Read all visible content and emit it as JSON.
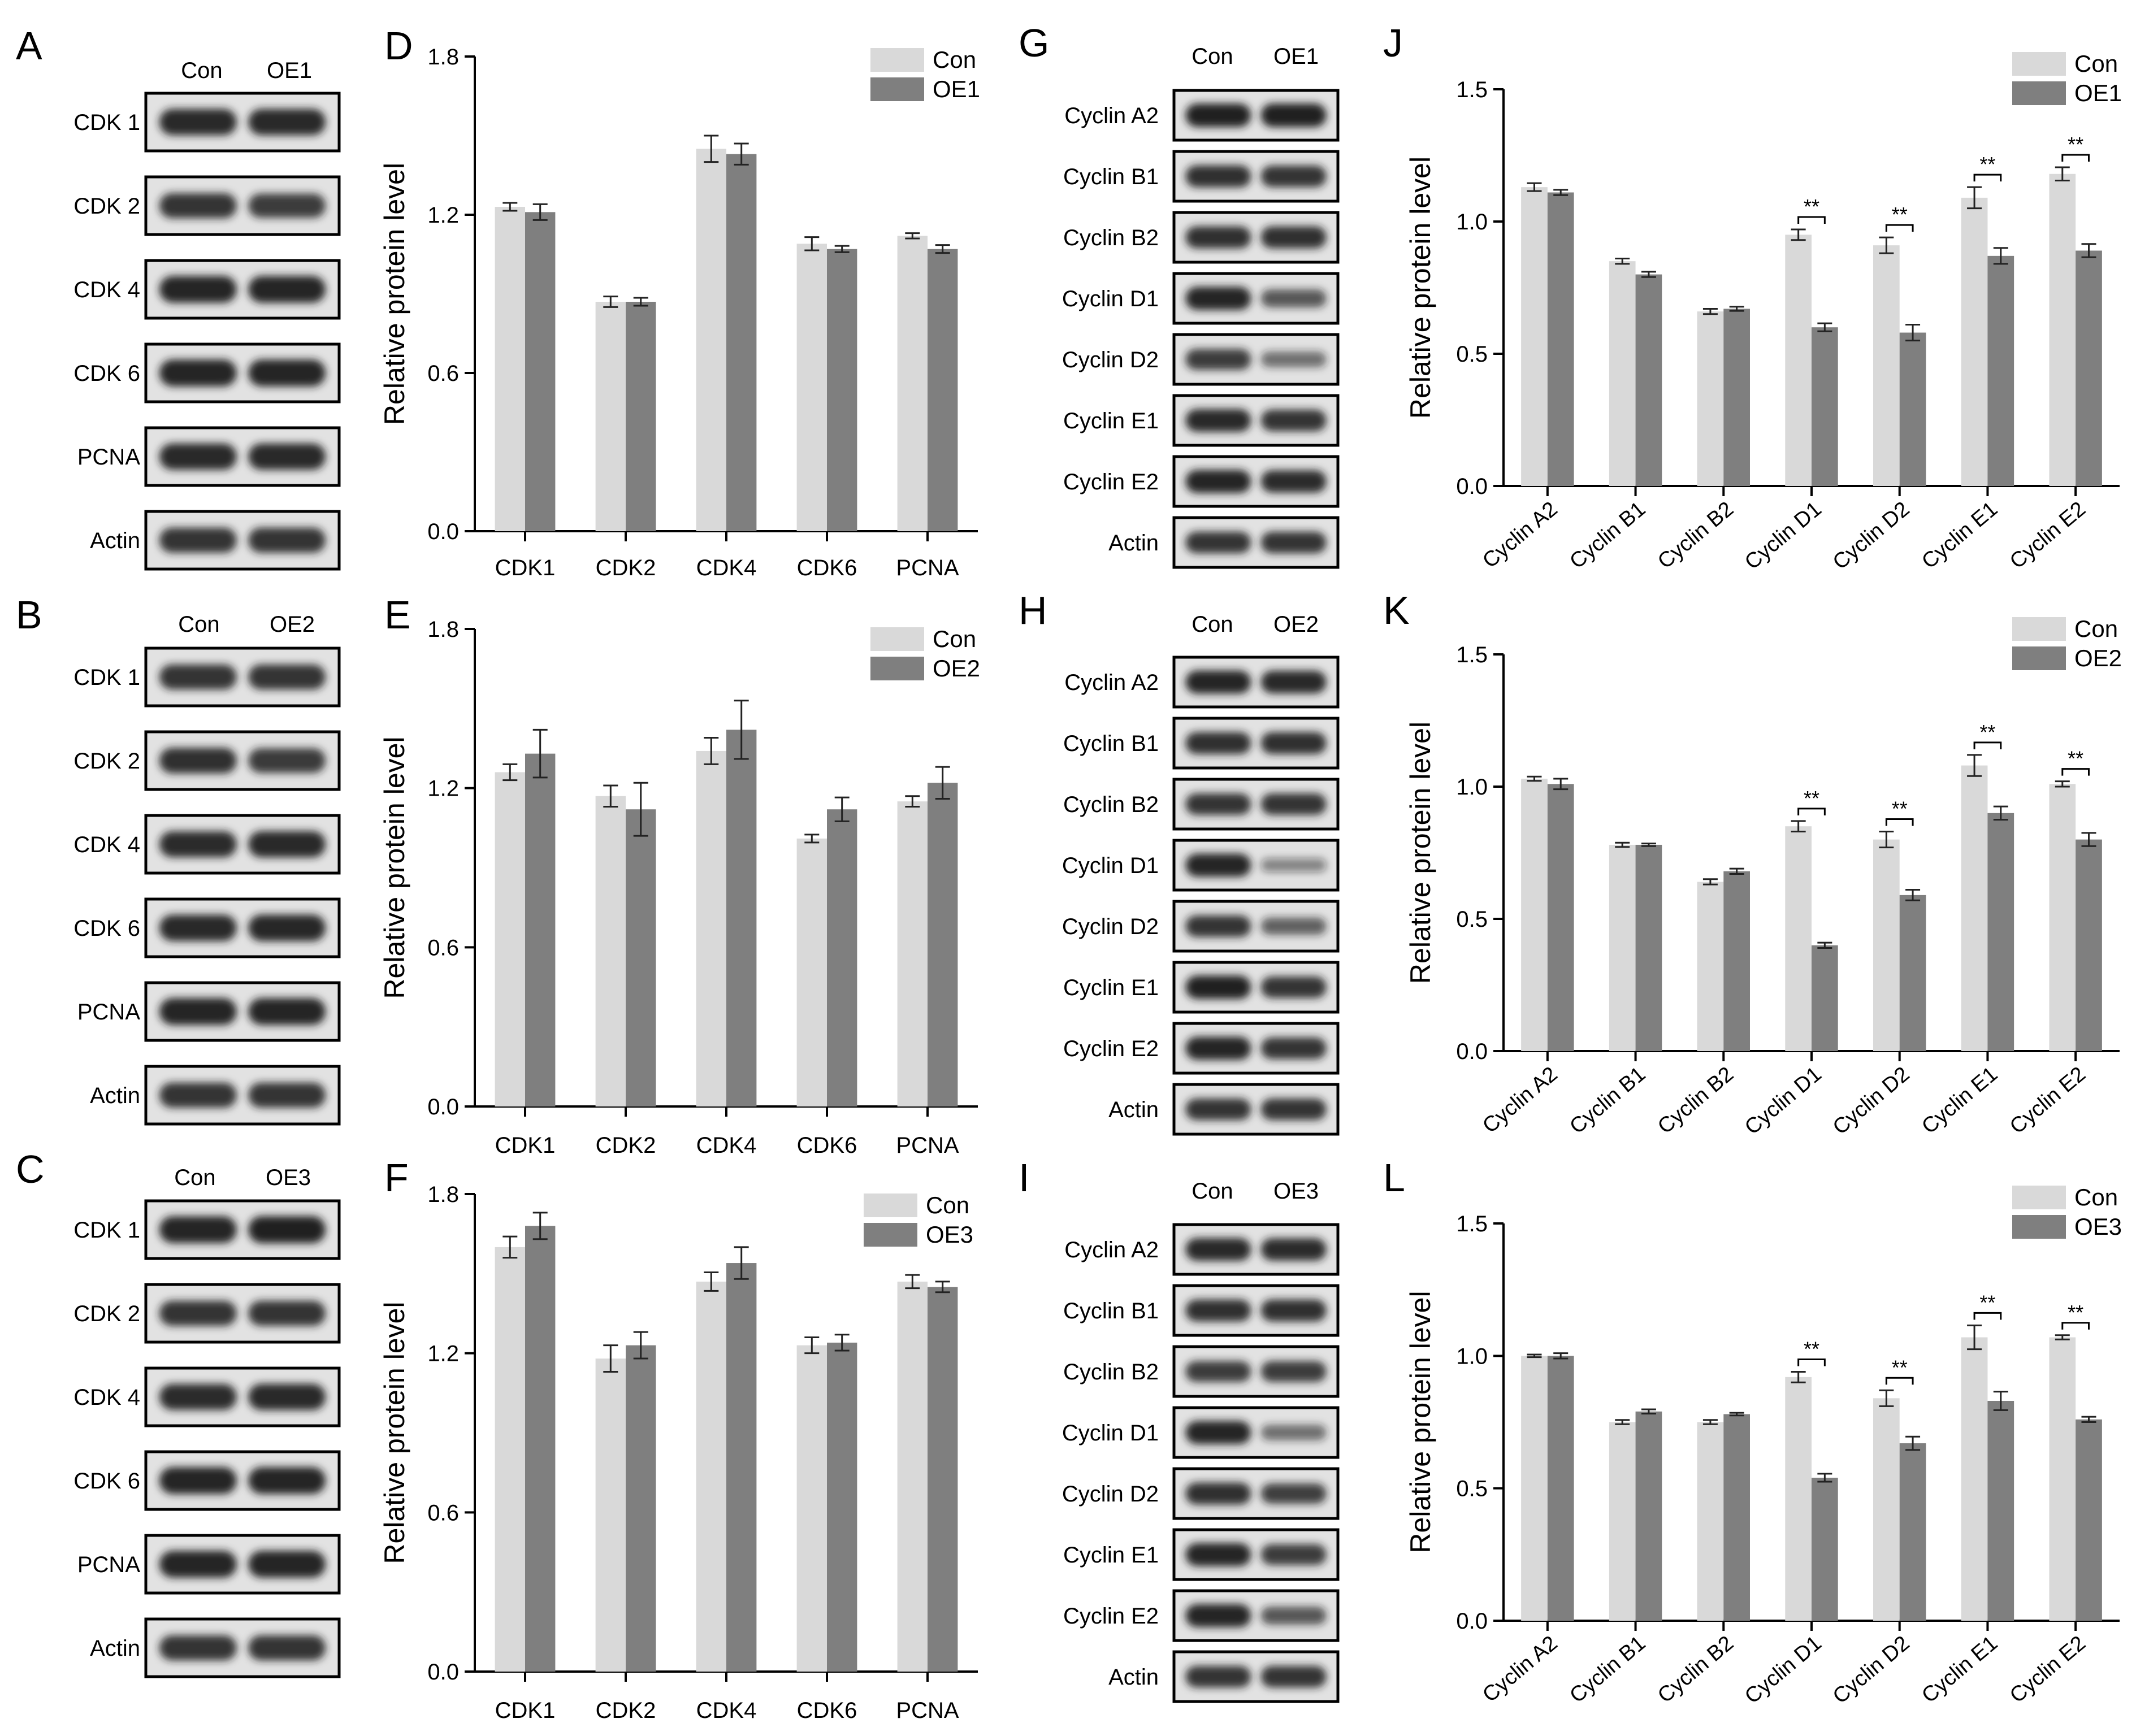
{
  "colors": {
    "con": "#d9d9d9",
    "oe": "#7f7f7f",
    "axis": "#000000",
    "blotBg": "#e2e2e2",
    "band": "#1c1c1c"
  },
  "blots": [
    {
      "letter": "A",
      "lanes": [
        "Con",
        "OE1"
      ],
      "rows": [
        "CDK 1",
        "CDK 2",
        "CDK 4",
        "CDK 6",
        "PCNA",
        "Actin"
      ],
      "intensity": [
        [
          0.92,
          0.92
        ],
        [
          0.85,
          0.8
        ],
        [
          0.95,
          0.95
        ],
        [
          0.95,
          0.95
        ],
        [
          0.92,
          0.92
        ],
        [
          0.85,
          0.85
        ]
      ]
    },
    {
      "letter": "B",
      "lanes": [
        "Con",
        "OE2"
      ],
      "rows": [
        "CDK 1",
        "CDK 2",
        "CDK 4",
        "CDK 6",
        "PCNA",
        "Actin"
      ],
      "intensity": [
        [
          0.85,
          0.85
        ],
        [
          0.88,
          0.82
        ],
        [
          0.9,
          0.92
        ],
        [
          0.92,
          0.94
        ],
        [
          0.95,
          0.95
        ],
        [
          0.85,
          0.85
        ]
      ]
    },
    {
      "letter": "C",
      "lanes": [
        "Con",
        "OE3"
      ],
      "rows": [
        "CDK 1",
        "CDK 2",
        "CDK 4",
        "CDK 6",
        "PCNA",
        "Actin"
      ],
      "intensity": [
        [
          0.95,
          0.97
        ],
        [
          0.85,
          0.85
        ],
        [
          0.9,
          0.92
        ],
        [
          0.95,
          0.95
        ],
        [
          0.95,
          0.95
        ],
        [
          0.85,
          0.85
        ]
      ]
    },
    {
      "letter": "G",
      "lanes": [
        "Con",
        "OE1"
      ],
      "rows": [
        "Cyclin A2",
        "Cyclin B1",
        "Cyclin B2",
        "Cyclin D1",
        "Cyclin D2",
        "Cyclin E1",
        "Cyclin E2",
        "Actin"
      ],
      "intensity": [
        [
          0.97,
          0.98
        ],
        [
          0.88,
          0.85
        ],
        [
          0.88,
          0.88
        ],
        [
          0.95,
          0.6
        ],
        [
          0.8,
          0.45
        ],
        [
          0.92,
          0.85
        ],
        [
          0.95,
          0.9
        ],
        [
          0.85,
          0.85
        ]
      ]
    },
    {
      "letter": "H",
      "lanes": [
        "Con",
        "OE2"
      ],
      "rows": [
        "Cyclin A2",
        "Cyclin B1",
        "Cyclin B2",
        "Cyclin D1",
        "Cyclin D2",
        "Cyclin E1",
        "Cyclin E2",
        "Actin"
      ],
      "intensity": [
        [
          0.95,
          0.92
        ],
        [
          0.88,
          0.88
        ],
        [
          0.85,
          0.85
        ],
        [
          0.95,
          0.3
        ],
        [
          0.85,
          0.55
        ],
        [
          0.97,
          0.85
        ],
        [
          0.95,
          0.85
        ],
        [
          0.85,
          0.85
        ]
      ]
    },
    {
      "letter": "I",
      "lanes": [
        "Con",
        "OE3"
      ],
      "rows": [
        "Cyclin A2",
        "Cyclin B1",
        "Cyclin B2",
        "Cyclin D1",
        "Cyclin D2",
        "Cyclin E1",
        "Cyclin E2",
        "Actin"
      ],
      "intensity": [
        [
          0.92,
          0.9
        ],
        [
          0.88,
          0.88
        ],
        [
          0.8,
          0.8
        ],
        [
          0.95,
          0.45
        ],
        [
          0.88,
          0.75
        ],
        [
          0.95,
          0.8
        ],
        [
          0.95,
          0.6
        ],
        [
          0.85,
          0.85
        ]
      ]
    }
  ],
  "chart_data": [
    {
      "letter": "D",
      "type": "bar",
      "categories": [
        "CDK1",
        "CDK2",
        "CDK4",
        "CDK6",
        "PCNA"
      ],
      "series": [
        {
          "name": "Con",
          "values": [
            1.23,
            0.87,
            1.45,
            1.09,
            1.12
          ],
          "errors": [
            0.015,
            0.02,
            0.05,
            0.025,
            0.01
          ]
        },
        {
          "name": "OE1",
          "values": [
            1.21,
            0.87,
            1.43,
            1.07,
            1.07
          ],
          "errors": [
            0.03,
            0.015,
            0.04,
            0.012,
            0.015
          ]
        }
      ],
      "ylabel": "Relative protein level",
      "ylim": [
        0,
        1.8
      ],
      "yticks": [
        "0.0",
        "0.6",
        "1.2",
        "1.8"
      ],
      "significance": []
    },
    {
      "letter": "E",
      "type": "bar",
      "categories": [
        "CDK1",
        "CDK2",
        "CDK4",
        "CDK6",
        "PCNA"
      ],
      "series": [
        {
          "name": "Con",
          "values": [
            1.26,
            1.17,
            1.34,
            1.01,
            1.15
          ],
          "errors": [
            0.03,
            0.04,
            0.05,
            0.015,
            0.02
          ]
        },
        {
          "name": "OE2",
          "values": [
            1.33,
            1.12,
            1.42,
            1.12,
            1.22
          ],
          "errors": [
            0.09,
            0.1,
            0.11,
            0.045,
            0.06
          ]
        }
      ],
      "ylabel": "Relative protein level",
      "ylim": [
        0,
        1.8
      ],
      "yticks": [
        "0.0",
        "0.6",
        "1.2",
        "1.8"
      ],
      "significance": []
    },
    {
      "letter": "F",
      "type": "bar",
      "categories": [
        "CDK1",
        "CDK2",
        "CDK4",
        "CDK6",
        "PCNA"
      ],
      "series": [
        {
          "name": "Con",
          "values": [
            1.6,
            1.18,
            1.47,
            1.23,
            1.47
          ],
          "errors": [
            0.04,
            0.05,
            0.035,
            0.03,
            0.025
          ]
        },
        {
          "name": "OE3",
          "values": [
            1.68,
            1.23,
            1.54,
            1.24,
            1.45
          ],
          "errors": [
            0.05,
            0.05,
            0.06,
            0.03,
            0.02
          ]
        }
      ],
      "ylabel": "Relative protein level",
      "ylim": [
        0,
        1.8
      ],
      "yticks": [
        "0.0",
        "0.6",
        "1.2",
        "1.8"
      ],
      "significance": []
    },
    {
      "letter": "J",
      "type": "bar",
      "categories": [
        "Cyclin A2",
        "Cyclin B1",
        "Cyclin B2",
        "Cyclin D1",
        "Cyclin D2",
        "Cyclin E1",
        "Cyclin E2"
      ],
      "series": [
        {
          "name": "Con",
          "values": [
            1.13,
            0.85,
            0.66,
            0.95,
            0.91,
            1.09,
            1.18
          ],
          "errors": [
            0.015,
            0.01,
            0.01,
            0.02,
            0.03,
            0.04,
            0.025
          ]
        },
        {
          "name": "OE1",
          "values": [
            1.11,
            0.8,
            0.67,
            0.6,
            0.58,
            0.87,
            0.89
          ],
          "errors": [
            0.01,
            0.01,
            0.008,
            0.015,
            0.03,
            0.03,
            0.025
          ]
        }
      ],
      "ylabel": "Relative protein level",
      "ylim": [
        0,
        1.5
      ],
      "yticks": [
        "0.0",
        "0.5",
        "1.0",
        "1.5"
      ],
      "significance": [
        {
          "index": 3,
          "label": "**"
        },
        {
          "index": 4,
          "label": "**"
        },
        {
          "index": 5,
          "label": "**"
        },
        {
          "index": 6,
          "label": "**"
        }
      ]
    },
    {
      "letter": "K",
      "type": "bar",
      "categories": [
        "Cyclin A2",
        "Cyclin B1",
        "Cyclin B2",
        "Cyclin D1",
        "Cyclin D2",
        "Cyclin E1",
        "Cyclin E2"
      ],
      "series": [
        {
          "name": "Con",
          "values": [
            1.03,
            0.78,
            0.64,
            0.85,
            0.8,
            1.08,
            1.01
          ],
          "errors": [
            0.008,
            0.008,
            0.01,
            0.02,
            0.03,
            0.04,
            0.01
          ]
        },
        {
          "name": "OE2",
          "values": [
            1.01,
            0.78,
            0.68,
            0.4,
            0.59,
            0.9,
            0.8
          ],
          "errors": [
            0.02,
            0.005,
            0.01,
            0.01,
            0.02,
            0.025,
            0.025
          ]
        }
      ],
      "ylabel": "Relative protein level",
      "ylim": [
        0,
        1.5
      ],
      "yticks": [
        "0.0",
        "0.5",
        "1.0",
        "1.5"
      ],
      "significance": [
        {
          "index": 3,
          "label": "**"
        },
        {
          "index": 4,
          "label": "**"
        },
        {
          "index": 5,
          "label": "**"
        },
        {
          "index": 6,
          "label": "**"
        }
      ]
    },
    {
      "letter": "L",
      "type": "bar",
      "categories": [
        "Cyclin A2",
        "Cyclin B1",
        "Cyclin B2",
        "Cyclin D1",
        "Cyclin D2",
        "Cyclin E1",
        "Cyclin E2"
      ],
      "series": [
        {
          "name": "Con",
          "values": [
            1.0,
            0.75,
            0.75,
            0.92,
            0.84,
            1.07,
            1.07
          ],
          "errors": [
            0.005,
            0.008,
            0.008,
            0.02,
            0.03,
            0.045,
            0.008
          ]
        },
        {
          "name": "OE3",
          "values": [
            1.0,
            0.79,
            0.78,
            0.54,
            0.67,
            0.83,
            0.76
          ],
          "errors": [
            0.01,
            0.008,
            0.005,
            0.015,
            0.025,
            0.035,
            0.01
          ]
        }
      ],
      "ylabel": "Relative protein level",
      "ylim": [
        0,
        1.5
      ],
      "yticks": [
        "0.0",
        "0.5",
        "1.0",
        "1.5"
      ],
      "significance": [
        {
          "index": 3,
          "label": "**"
        },
        {
          "index": 4,
          "label": "**"
        },
        {
          "index": 5,
          "label": "**"
        },
        {
          "index": 6,
          "label": "**"
        }
      ]
    }
  ]
}
